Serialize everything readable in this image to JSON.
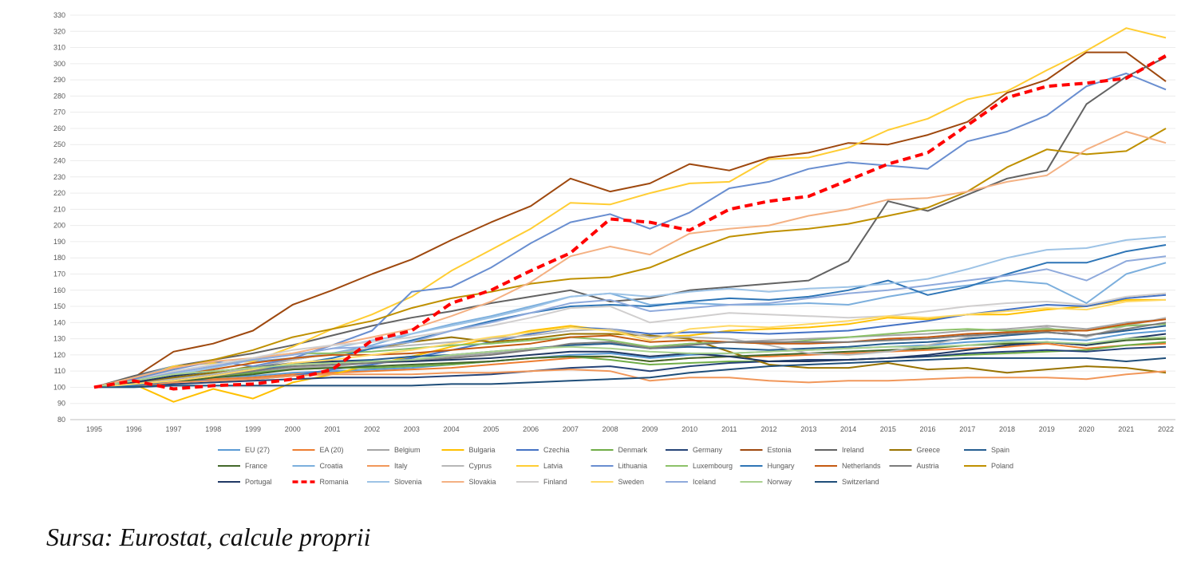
{
  "source_note": "Sursa: Eurostat, calcule proprii",
  "chart_data": {
    "type": "line",
    "title": "",
    "xlabel": "",
    "ylabel": "",
    "ylim": [
      80,
      330
    ],
    "ytick_step": 10,
    "grid": "horizontal",
    "legend_position": "bottom",
    "x": [
      "1995",
      "1996",
      "1997",
      "1998",
      "1999",
      "2000",
      "2001",
      "2002",
      "2003",
      "2004",
      "2005",
      "2006",
      "2007",
      "2008",
      "2009",
      "2010",
      "2011",
      "2012",
      "2013",
      "2014",
      "2015",
      "2016",
      "2017",
      "2018",
      "2019",
      "2020",
      "2021",
      "2022"
    ],
    "series": [
      {
        "name": "EU (27)",
        "color": "#5b9bd5",
        "values": [
          100,
          102,
          104,
          106,
          107,
          109,
          110,
          111,
          112,
          114,
          116,
          118,
          120,
          121,
          118,
          120,
          121,
          122,
          123,
          124,
          125,
          126,
          128,
          129,
          130,
          129,
          133,
          135
        ]
      },
      {
        "name": "EA (20)",
        "color": "#ed7d31",
        "values": [
          100,
          101,
          103,
          105,
          106,
          108,
          109,
          110,
          111,
          112,
          114,
          116,
          118,
          119,
          116,
          118,
          119,
          119,
          120,
          121,
          122,
          123,
          124,
          125,
          127,
          124,
          126,
          127
        ]
      },
      {
        "name": "Belgium",
        "color": "#a5a5a5",
        "values": [
          100,
          102,
          104,
          107,
          109,
          112,
          113,
          115,
          117,
          119,
          121,
          123,
          126,
          127,
          125,
          127,
          128,
          129,
          130,
          131,
          132,
          133,
          135,
          136,
          138,
          136,
          140,
          142
        ]
      },
      {
        "name": "Bulgaria",
        "color": "#ffc000",
        "values": [
          100,
          102,
          91,
          99,
          93,
          103,
          108,
          114,
          119,
          125,
          130,
          135,
          138,
          135,
          131,
          132,
          135,
          136,
          137,
          139,
          143,
          142,
          145,
          145,
          148,
          150,
          154,
          154
        ]
      },
      {
        "name": "Czechia",
        "color": "#4472c4",
        "values": [
          100,
          104,
          105,
          104,
          105,
          107,
          111,
          114,
          118,
          123,
          128,
          133,
          137,
          136,
          133,
          134,
          134,
          133,
          134,
          135,
          138,
          141,
          145,
          148,
          151,
          150,
          155,
          157
        ]
      },
      {
        "name": "Denmark",
        "color": "#70ad47",
        "values": [
          100,
          103,
          106,
          107,
          109,
          111,
          112,
          112,
          113,
          114,
          116,
          118,
          119,
          117,
          114,
          115,
          116,
          116,
          117,
          117,
          118,
          119,
          120,
          121,
          122,
          123,
          126,
          128
        ]
      },
      {
        "name": "Germany",
        "color": "#264478",
        "values": [
          100,
          101,
          102,
          103,
          104,
          105,
          106,
          106,
          106,
          107,
          108,
          110,
          112,
          113,
          110,
          113,
          115,
          116,
          117,
          117,
          118,
          119,
          121,
          122,
          123,
          122,
          124,
          125
        ]
      },
      {
        "name": "Estonia",
        "color": "#9e480e",
        "values": [
          100,
          106,
          122,
          127,
          135,
          151,
          160,
          170,
          179,
          191,
          202,
          212,
          229,
          221,
          226,
          238,
          234,
          242,
          245,
          251,
          250,
          256,
          264,
          282,
          290,
          307,
          307,
          289
        ]
      },
      {
        "name": "Ireland",
        "color": "#636363",
        "values": [
          100,
          107,
          113,
          117,
          121,
          126,
          132,
          138,
          143,
          147,
          152,
          156,
          160,
          153,
          155,
          160,
          162,
          164,
          166,
          178,
          215,
          209,
          219,
          229,
          234,
          275,
          292,
          304
        ]
      },
      {
        "name": "Greece",
        "color": "#997300",
        "values": [
          100,
          102,
          106,
          109,
          113,
          117,
          121,
          124,
          128,
          131,
          128,
          130,
          133,
          133,
          132,
          130,
          122,
          114,
          112,
          112,
          115,
          111,
          112,
          109,
          111,
          113,
          112,
          109
        ]
      },
      {
        "name": "Spain",
        "color": "#255e91",
        "values": [
          100,
          102,
          105,
          108,
          111,
          114,
          116,
          117,
          119,
          120,
          122,
          124,
          126,
          127,
          124,
          125,
          124,
          123,
          124,
          125,
          127,
          128,
          130,
          132,
          134,
          132,
          135,
          138
        ]
      },
      {
        "name": "France",
        "color": "#43682b",
        "values": [
          100,
          101,
          103,
          106,
          108,
          111,
          112,
          113,
          114,
          115,
          116,
          118,
          119,
          119,
          116,
          118,
          119,
          120,
          121,
          122,
          123,
          124,
          126,
          127,
          128,
          126,
          129,
          130
        ]
      },
      {
        "name": "Croatia",
        "color": "#7cafdd",
        "values": [
          100,
          106,
          113,
          115,
          116,
          118,
          121,
          126,
          133,
          139,
          144,
          150,
          156,
          158,
          151,
          152,
          151,
          151,
          152,
          151,
          156,
          160,
          163,
          166,
          164,
          152,
          170,
          177
        ]
      },
      {
        "name": "Italy",
        "color": "#f1975a",
        "values": [
          100,
          101,
          103,
          104,
          105,
          107,
          108,
          108,
          108,
          109,
          109,
          110,
          111,
          110,
          104,
          106,
          106,
          104,
          103,
          104,
          104,
          105,
          106,
          106,
          106,
          105,
          108,
          110
        ]
      },
      {
        "name": "Cyprus",
        "color": "#b7b7b7",
        "values": [
          100,
          102,
          105,
          108,
          112,
          117,
          121,
          124,
          126,
          128,
          130,
          132,
          135,
          136,
          131,
          131,
          130,
          126,
          121,
          120,
          122,
          126,
          131,
          134,
          137,
          131,
          138,
          143
        ]
      },
      {
        "name": "Latvia",
        "color": "#ffcd33",
        "values": [
          100,
          104,
          113,
          115,
          116,
          125,
          136,
          145,
          156,
          172,
          185,
          198,
          214,
          213,
          220,
          226,
          227,
          241,
          242,
          248,
          259,
          266,
          278,
          283,
          296,
          308,
          322,
          316
        ]
      },
      {
        "name": "Lithuania",
        "color": "#698ed0",
        "values": [
          100,
          105,
          111,
          116,
          113,
          118,
          126,
          135,
          159,
          162,
          174,
          189,
          202,
          207,
          198,
          208,
          223,
          227,
          235,
          239,
          237,
          235,
          252,
          258,
          268,
          286,
          294,
          284
        ]
      },
      {
        "name": "Luxembourg",
        "color": "#8cc168",
        "values": [
          100,
          103,
          107,
          112,
          118,
          121,
          121,
          122,
          124,
          126,
          127,
          129,
          131,
          129,
          125,
          127,
          128,
          127,
          129,
          131,
          133,
          135,
          136,
          135,
          136,
          135,
          138,
          139
        ]
      },
      {
        "name": "Hungary",
        "color": "#2e75b6",
        "values": [
          100,
          101,
          104,
          107,
          110,
          114,
          118,
          124,
          129,
          135,
          141,
          146,
          150,
          151,
          150,
          153,
          155,
          154,
          156,
          160,
          166,
          157,
          162,
          170,
          177,
          177,
          184,
          188
        ]
      },
      {
        "name": "Netherlands",
        "color": "#c55a11",
        "values": [
          100,
          103,
          107,
          111,
          115,
          118,
          120,
          120,
          121,
          123,
          125,
          127,
          131,
          132,
          128,
          129,
          128,
          127,
          127,
          128,
          130,
          131,
          133,
          134,
          135,
          135,
          139,
          142
        ]
      },
      {
        "name": "Austria",
        "color": "#7b7b7b",
        "values": [
          100,
          102,
          104,
          107,
          110,
          113,
          114,
          115,
          116,
          118,
          120,
          123,
          127,
          128,
          124,
          126,
          128,
          128,
          128,
          128,
          129,
          130,
          132,
          133,
          134,
          132,
          136,
          140
        ]
      },
      {
        "name": "Poland",
        "color": "#bf9000",
        "values": [
          100,
          106,
          112,
          117,
          123,
          131,
          136,
          141,
          149,
          155,
          159,
          164,
          167,
          168,
          174,
          184,
          193,
          196,
          198,
          201,
          206,
          211,
          221,
          236,
          247,
          244,
          246,
          260
        ]
      },
      {
        "name": "Portugal",
        "color": "#203864",
        "values": [
          100,
          103,
          107,
          110,
          112,
          115,
          116,
          116,
          116,
          117,
          118,
          120,
          122,
          122,
          119,
          121,
          119,
          116,
          116,
          117,
          118,
          120,
          123,
          126,
          128,
          126,
          130,
          133
        ]
      },
      {
        "name": "Romania",
        "color": "#ff0000",
        "dashed": true,
        "values": [
          100,
          104,
          99,
          101,
          102,
          105,
          111,
          129,
          135,
          152,
          160,
          172,
          183,
          204,
          202,
          197,
          210,
          215,
          218,
          228,
          238,
          245,
          262,
          279,
          286,
          288,
          291,
          305
        ]
      },
      {
        "name": "Slovenia",
        "color": "#9dc3e6",
        "values": [
          100,
          104,
          108,
          112,
          117,
          120,
          124,
          129,
          133,
          138,
          143,
          149,
          156,
          158,
          156,
          159,
          161,
          159,
          161,
          162,
          164,
          167,
          173,
          180,
          185,
          186,
          191,
          193
        ]
      },
      {
        "name": "Slovakia",
        "color": "#f4b183",
        "values": [
          100,
          106,
          112,
          116,
          118,
          121,
          126,
          131,
          136,
          144,
          153,
          165,
          181,
          187,
          182,
          195,
          198,
          200,
          206,
          210,
          216,
          217,
          221,
          227,
          231,
          247,
          258,
          251
        ]
      },
      {
        "name": "Finland",
        "color": "#d0cece",
        "values": [
          100,
          104,
          110,
          114,
          118,
          123,
          126,
          128,
          131,
          135,
          138,
          143,
          149,
          150,
          140,
          143,
          146,
          145,
          144,
          143,
          144,
          147,
          150,
          152,
          153,
          151,
          156,
          158
        ]
      },
      {
        "name": "Sweden",
        "color": "#ffd966",
        "values": [
          100,
          102,
          104,
          107,
          111,
          115,
          117,
          120,
          123,
          127,
          131,
          134,
          137,
          135,
          129,
          136,
          138,
          137,
          139,
          141,
          144,
          143,
          145,
          147,
          149,
          148,
          153,
          154
        ]
      },
      {
        "name": "Iceland",
        "color": "#8faadc",
        "values": [
          100,
          104,
          109,
          113,
          117,
          120,
          124,
          125,
          128,
          135,
          140,
          146,
          152,
          154,
          147,
          149,
          151,
          152,
          155,
          158,
          160,
          163,
          166,
          169,
          173,
          166,
          178,
          181
        ]
      },
      {
        "name": "Norway",
        "color": "#a9d18e",
        "values": [
          100,
          104,
          108,
          110,
          112,
          114,
          115,
          116,
          117,
          120,
          122,
          124,
          125,
          124,
          122,
          121,
          121,
          122,
          123,
          124,
          125,
          125,
          126,
          128,
          128,
          127,
          130,
          131
        ]
      },
      {
        "name": "Switzerland",
        "color": "#1f4e79",
        "values": [
          100,
          100,
          101,
          101,
          101,
          101,
          101,
          101,
          101,
          102,
          102,
          103,
          104,
          105,
          106,
          109,
          111,
          113,
          114,
          115,
          116,
          117,
          118,
          118,
          118,
          118,
          116,
          118
        ]
      }
    ]
  }
}
